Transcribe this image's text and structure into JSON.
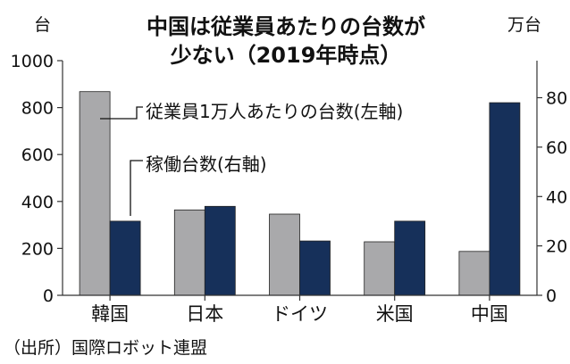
{
  "chart_data": {
    "type": "bar",
    "title_lines": [
      "中国は従業員あたりの台数が",
      "少ない（2019年時点）"
    ],
    "left_unit": "台",
    "right_unit": "万台",
    "categories": [
      "韓国",
      "日本",
      "ドイツ",
      "米国",
      "中国"
    ],
    "series": [
      {
        "name": "従業員1万人あたりの台数(左軸)",
        "axis": "left",
        "color": "#a9a9ab",
        "values": [
          868,
          364,
          346,
          228,
          187
        ]
      },
      {
        "name": "稼働台数(右軸)",
        "axis": "right",
        "color": "#16305a",
        "values": [
          30,
          36,
          22,
          30,
          78
        ]
      }
    ],
    "y_left": {
      "ylim": [
        0,
        1000
      ],
      "ticks": [
        "0",
        "200",
        "400",
        "600",
        "800",
        "1000"
      ]
    },
    "y_right": {
      "ylim": [
        0,
        95
      ],
      "ticks": [
        "0",
        "20",
        "40",
        "60",
        "80"
      ]
    },
    "grid": false,
    "legend": "callout-labels",
    "source": "（出所）国際ロボット連盟"
  }
}
